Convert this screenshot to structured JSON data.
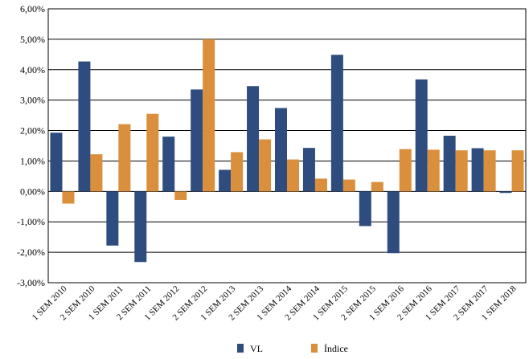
{
  "chart_data": {
    "type": "bar",
    "title": "",
    "xlabel": "",
    "ylabel": "",
    "ylim": [
      -0.03,
      0.06
    ],
    "yticks": [
      "-3,00%",
      "-2,00%",
      "-1,00%",
      "0,00%",
      "1,00%",
      "2,00%",
      "3,00%",
      "4,00%",
      "5,00%",
      "6,00%"
    ],
    "grid": "horizontal",
    "legend_position": "bottom-center",
    "categories": [
      "1 SEM 2010",
      "2 SEM 2010",
      "1 SEM 2011",
      "2 SEM 2011",
      "1 SEM 2012",
      "2 SEM 2012",
      "1 SEM 2013",
      "2 SEM 2013",
      "1 SEM 2014",
      "2 SEM 2014",
      "1 SEM 2015",
      "2 SEM 2015",
      "1 SEM 2016",
      "2 SEM 2016",
      "1 SEM 2017",
      "2 SEM 2017",
      "1 SEM 2018"
    ],
    "series": [
      {
        "name": "VL",
        "color": "#2e4d7e",
        "values": [
          0.0193,
          0.0427,
          -0.0178,
          -0.0232,
          0.018,
          0.0335,
          0.0071,
          0.0346,
          0.0274,
          0.0143,
          0.0449,
          -0.0114,
          -0.0203,
          0.0368,
          0.0183,
          0.0142,
          -0.0005
        ]
      },
      {
        "name": "Índice",
        "color": "#d98f3b",
        "values": [
          -0.004,
          0.0122,
          0.0221,
          0.0255,
          -0.0028,
          0.05,
          0.0129,
          0.0171,
          0.0105,
          0.0042,
          0.0039,
          0.0031,
          0.0139,
          0.0137,
          0.0135,
          0.0135,
          0.0135
        ]
      }
    ]
  }
}
